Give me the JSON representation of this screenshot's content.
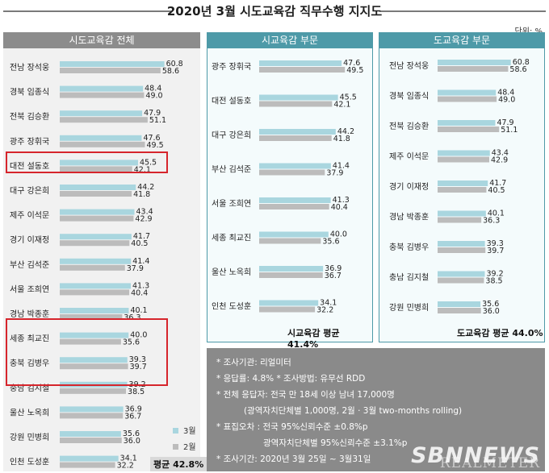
{
  "title": "2020년 3월 시도교육감 직무수행 지지도",
  "unit": "단위: %",
  "colors": {
    "march": "#a9d6df",
    "feb": "#bcbcbc",
    "accent": "#4e9aa8",
    "highlight": "#d6252c",
    "notes_bg": "#8a8a8a"
  },
  "legend": {
    "march": "3월",
    "feb": "2월"
  },
  "chart_data": [
    {
      "type": "bar",
      "title": "시도교육감 전체",
      "series": [
        {
          "name": "3월"
        },
        {
          "name": "2월"
        }
      ],
      "categories": [
        "전남 장석웅",
        "경북 임종식",
        "전북 김승환",
        "광주 장휘국",
        "대전 설동호",
        "대구 강은희",
        "제주 이석문",
        "경기 이재정",
        "부산 김석준",
        "서울 조희연",
        "경남 박종훈",
        "세종 최교진",
        "충북 김병우",
        "충남 김지철",
        "울산 노옥희",
        "강원 민병희",
        "인천 도성훈"
      ],
      "march": [
        60.8,
        48.4,
        47.9,
        47.6,
        45.5,
        44.2,
        43.4,
        41.7,
        41.4,
        41.3,
        40.1,
        40.0,
        39.3,
        39.2,
        36.9,
        35.6,
        34.1
      ],
      "feb": [
        58.6,
        49.0,
        51.1,
        49.5,
        42.1,
        41.8,
        42.9,
        40.5,
        37.9,
        40.4,
        36.3,
        35.6,
        39.7,
        38.5,
        36.7,
        36.0,
        32.2
      ],
      "average_label": "평균 42.8%",
      "highlighted": [
        "대전 설동호",
        "세종 최교진",
        "충북 김병우",
        "충남 김지철"
      ]
    },
    {
      "type": "bar",
      "title": "시교육감 부문",
      "series": [
        {
          "name": "3월"
        },
        {
          "name": "2월"
        }
      ],
      "categories": [
        "광주 장휘국",
        "대전 설동호",
        "대구 강은희",
        "부산 김석준",
        "서울 조희연",
        "세종 최교진",
        "울산 노옥희",
        "인천 도성훈"
      ],
      "march": [
        47.6,
        45.5,
        44.2,
        41.4,
        41.3,
        40.0,
        36.9,
        34.1
      ],
      "feb": [
        49.5,
        42.1,
        41.8,
        37.9,
        40.4,
        35.6,
        36.7,
        32.2
      ],
      "average_label": "시교육감 평균 41.4%"
    },
    {
      "type": "bar",
      "title": "도교육감 부문",
      "series": [
        {
          "name": "3월"
        },
        {
          "name": "2월"
        }
      ],
      "categories": [
        "전남 장석웅",
        "경북 임종식",
        "전북 김승환",
        "제주 이석문",
        "경기 이재정",
        "경남 박종훈",
        "충북 김병우",
        "충남 김지철",
        "강원 민병희"
      ],
      "march": [
        60.8,
        48.4,
        47.9,
        43.4,
        41.7,
        40.1,
        39.3,
        39.2,
        35.6
      ],
      "feb": [
        58.6,
        49.0,
        51.1,
        42.9,
        40.5,
        36.3,
        39.7,
        38.5,
        36.0
      ],
      "average_label": "도교육감 평균 44.0%"
    }
  ],
  "notes": [
    "* 조사기관: 리얼미터",
    "* 응답률: 4.8% * 조사방법: 유무선 RDD",
    "* 전체 응답자: 전국 만 18세 이상 남녀 17,000명",
    "(광역자치단체별 1,000명, 2월 · 3월 two-months rolling)",
    "* 표집오차 : 전국 95%신뢰수준 ±0.8%p",
    "광역자치단체별 95%신뢰수준 ±3.1%p",
    "* 조사기간: 2020년 3월 25일 ~ 3월31일"
  ],
  "watermark": "SBNNEWS",
  "watermark2": "REALMETER"
}
